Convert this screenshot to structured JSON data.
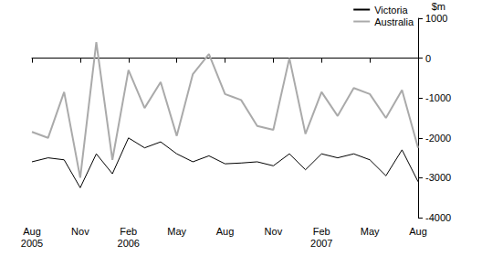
{
  "chart_data": {
    "type": "line",
    "y_label": "$m",
    "categories": [
      "Aug\n2005",
      null,
      null,
      "Nov",
      null,
      null,
      "Feb\n2006",
      null,
      null,
      "May",
      null,
      null,
      "Aug",
      null,
      null,
      "Nov",
      null,
      null,
      "Feb\n2007",
      null,
      null,
      "May",
      null,
      null,
      "Aug"
    ],
    "series": [
      {
        "name": "Victoria",
        "color": "#000000",
        "values": [
          -2600,
          -2500,
          -2550,
          -3250,
          -2400,
          -2900,
          -2000,
          -2250,
          -2100,
          -2400,
          -2600,
          -2450,
          -2650,
          -2630,
          -2600,
          -2700,
          -2400,
          -2800,
          -2400,
          -2500,
          -2400,
          -2550,
          -2950,
          -2300,
          -3100
        ]
      },
      {
        "name": "Australia",
        "color": "#aaaaaa",
        "values": [
          -1850,
          -2000,
          -850,
          -3000,
          400,
          -2550,
          -300,
          -1250,
          -600,
          -1950,
          -400,
          100,
          -900,
          -1050,
          -1700,
          -1800,
          0,
          -1900,
          -850,
          -1450,
          -750,
          -900,
          -1500,
          -800,
          -2250
        ]
      }
    ],
    "ylim": [
      -4000,
      1000
    ],
    "yticks": [
      -4000,
      -3000,
      -2000,
      -1000,
      0,
      1000
    ],
    "grid": false,
    "legend": "top-right"
  }
}
